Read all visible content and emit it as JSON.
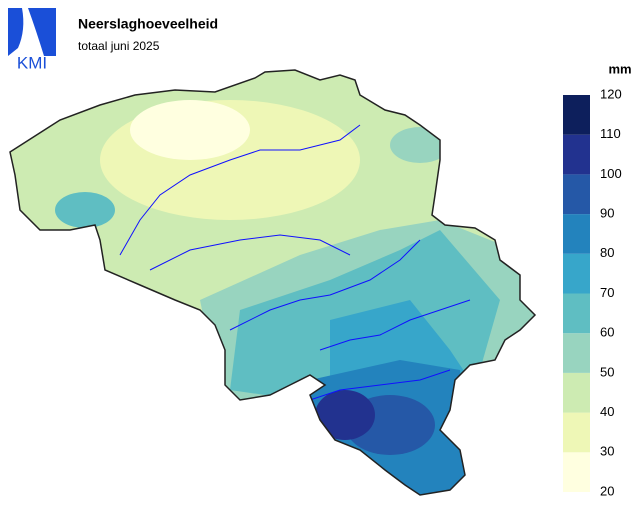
{
  "logo": "KMI",
  "title": "Neerslaghoeveelheid",
  "subtitle": "totaal juni 2025",
  "legend": {
    "unit": "mm",
    "ticks": [
      20,
      30,
      40,
      50,
      60,
      70,
      80,
      90,
      100,
      110,
      120
    ],
    "colors": [
      "#ffffe0",
      "#eef7b6",
      "#cdebb2",
      "#98d4bf",
      "#5fbec2",
      "#37a6ca",
      "#2383bd",
      "#2558a7",
      "#22328f",
      "#0d1f5c"
    ]
  }
}
